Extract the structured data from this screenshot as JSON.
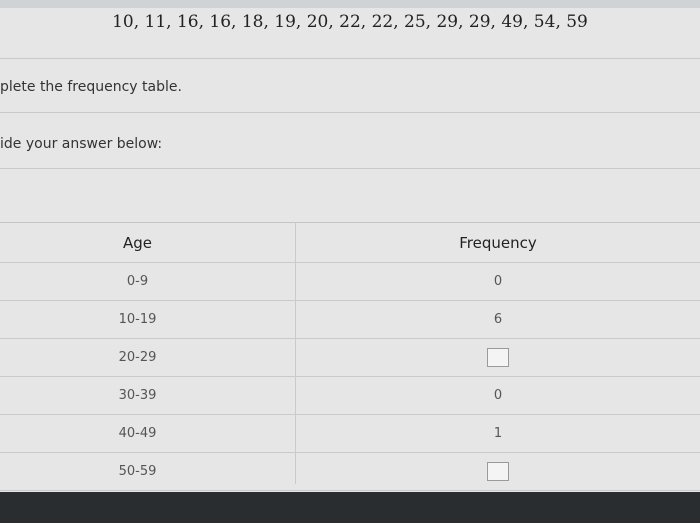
{
  "header": {
    "numbers": "10, 11, 16, 16, 18, 19, 20, 22, 22, 25, 29, 29, 49, 54, 59"
  },
  "instructions": [
    "plete the frequency table.",
    "ide your answer below:"
  ],
  "table": {
    "columns": [
      "Age",
      "Frequency"
    ],
    "rows": [
      [
        "0-9",
        "0"
      ],
      [
        "10-19",
        "6"
      ],
      [
        "20-29"
      ],
      [
        "30-39",
        "0"
      ],
      [
        "40-49",
        "1"
      ],
      [
        "50-59"
      ]
    ]
  }
}
